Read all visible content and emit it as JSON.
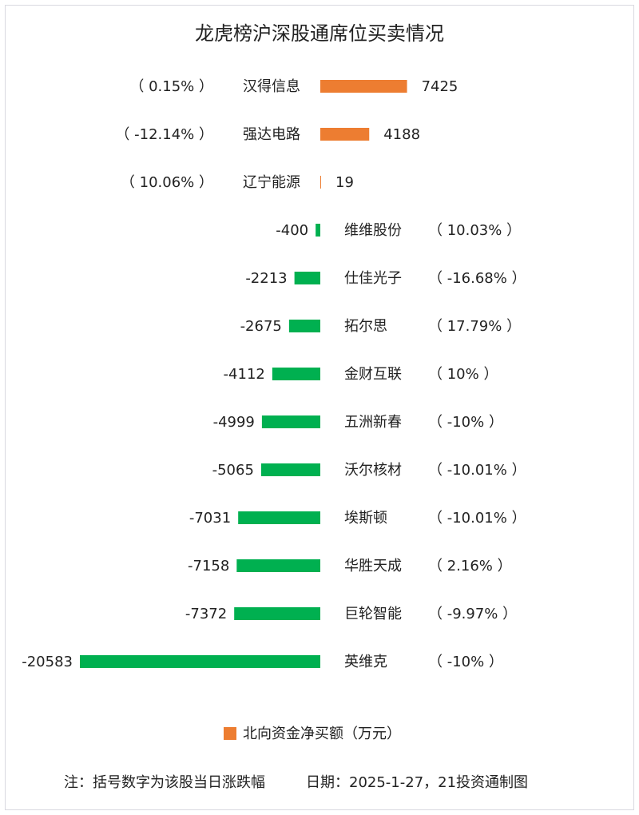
{
  "chart_data": {
    "type": "bar",
    "orientation": "horizontal",
    "title": "龙虎榜沪深股通席位买卖情况",
    "categories": [
      "汉得信息",
      "强达电路",
      "辽宁能源",
      "维维股份",
      "仕佳光子",
      "拓尔思",
      "金财互联",
      "五洲新春",
      "沃尔核材",
      "埃斯顿",
      "华胜天成",
      "巨轮智能",
      "英维克"
    ],
    "values": [
      7425,
      4188,
      19,
      -400,
      -2213,
      -2675,
      -4112,
      -4999,
      -5065,
      -7031,
      -7158,
      -7372,
      -20583
    ],
    "value_labels": [
      "7425",
      "4188",
      "19",
      "-400",
      "-2213",
      "-2675",
      "-4112",
      "-4999",
      "-5065",
      "-7031",
      "-7158",
      "-7372",
      "-20583"
    ],
    "pct_labels": [
      "（ 0.15% ）",
      "（ -12.14% ）",
      "（ 10.06% ）",
      "（ 10.03% ）",
      "（ -16.68% ）",
      "（ 17.79% ）",
      "（ 10% ）",
      "（ -10% ）",
      "（ -10.01% ）",
      "（ -10.01% ）",
      "（ 2.16% ）",
      "（ -9.97% ）",
      "（ -10% ）"
    ],
    "series": [
      {
        "name": "北向资金净买额（万元）"
      }
    ],
    "positive_color": "#ed7d31",
    "negative_color": "#00b050",
    "legend_position": "bottom",
    "grid": false
  },
  "footer": {
    "note": "注：括号数字为该股当日涨跌幅",
    "date_source": "日期：2025-1-27，21投资通制图"
  }
}
